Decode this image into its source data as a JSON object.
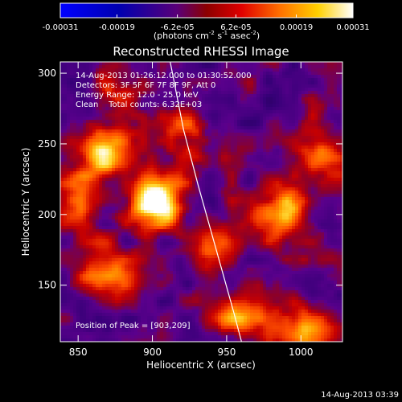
{
  "colorbar": {
    "ticks": [
      {
        "value": -0.00031,
        "label": "-0.00031"
      },
      {
        "value": -0.00019,
        "label": "-0.00019"
      },
      {
        "value": -6.2e-05,
        "label": "-6.2e-05"
      },
      {
        "value": 6.2e-05,
        "label": "6.2e-05"
      },
      {
        "value": 0.00019,
        "label": "0.00019"
      },
      {
        "value": 0.00031,
        "label": "0.00031"
      }
    ],
    "range": [
      -0.00031,
      0.00031
    ],
    "unit_base": "(photons cm",
    "unit_exp1": "-2",
    "unit_mid": " s",
    "unit_exp2": "-1",
    "unit_mid2": " asec",
    "unit_exp3": "-2",
    "unit_end": ")"
  },
  "chart_data": {
    "type": "heatmap",
    "title": "Reconstructed RHESSI Image",
    "xlabel": "Heliocentric X (arcsec)",
    "ylabel": "Heliocentric Y (arcsec)",
    "xlim": [
      838,
      1028
    ],
    "ylim": [
      110,
      308
    ],
    "xticks": [
      850,
      900,
      950,
      1000
    ],
    "yticks": [
      150,
      200,
      250,
      300
    ],
    "sources": [
      {
        "x": 903,
        "y": 209,
        "peak": 1.0
      },
      {
        "x": 865,
        "y": 245,
        "peak": 0.8
      },
      {
        "x": 985,
        "y": 201,
        "peak": 0.75
      },
      {
        "x": 848,
        "y": 210,
        "peak": 0.55
      },
      {
        "x": 870,
        "y": 160,
        "peak": 0.6
      },
      {
        "x": 925,
        "y": 255,
        "peak": 0.45
      },
      {
        "x": 1015,
        "y": 245,
        "peak": 0.5
      },
      {
        "x": 960,
        "y": 130,
        "peak": 0.65
      },
      {
        "x": 1005,
        "y": 118,
        "peak": 0.6
      },
      {
        "x": 880,
        "y": 290,
        "peak": 0.35
      },
      {
        "x": 940,
        "y": 175,
        "peak": 0.35
      }
    ],
    "limb": [
      [
        912,
        308
      ],
      [
        921,
        260
      ],
      [
        931,
        220
      ],
      [
        943,
        175
      ],
      [
        955,
        130
      ],
      [
        960,
        110
      ]
    ],
    "annotations": [
      "14-Aug-2013 01:26:12.000 to 01:30:52.000",
      "Detectors: 3F 5F 6F 7F 8F 9F, Att 0",
      "Energy Range: 12.0 - 25.0 keV",
      "Clean    Total counts: 6.32E+03"
    ],
    "peak_label": "Position of Peak = [903,209]"
  },
  "footer": {
    "timestamp": "14-Aug-2013 03:39"
  }
}
